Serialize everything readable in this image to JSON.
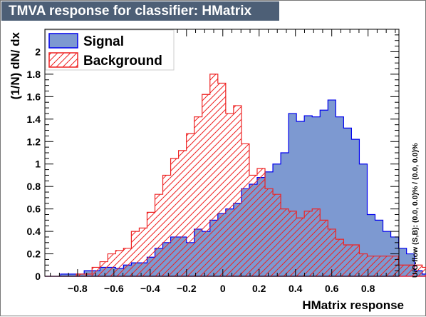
{
  "title": "TMVA response for classifier: HMatrix",
  "side_note": "U/O-flow (S,B): (0.0, 0.0)% / (0.0, 0.0)%",
  "colors": {
    "signal_fill": "#7d99d1",
    "signal_line": "#0000ee",
    "background_line": "#ee2222",
    "title_bg": "#4d5f76"
  },
  "chart_data": {
    "type": "histogram",
    "title": "TMVA response for classifier: HMatrix",
    "xlabel": "HMatrix response",
    "ylabel": "(1/N) dN/ dx",
    "xlim": [
      -0.98,
      0.97
    ],
    "ylim": [
      0,
      2.2
    ],
    "bin_start": -0.98,
    "bin_width": 0.0433,
    "xticks": [
      -0.8,
      -0.6,
      -0.4,
      -0.2,
      0,
      0.2,
      0.4,
      0.6,
      0.8
    ],
    "xtick_labels": [
      "−0.8",
      "−0.6",
      "−0.4",
      "−0.2",
      "0",
      "0.2",
      "0.4",
      "0.6",
      "0.8"
    ],
    "yticks": [
      0,
      0.2,
      0.4,
      0.6,
      0.8,
      1,
      1.2,
      1.4,
      1.6,
      1.8,
      2
    ],
    "ytick_labels": [
      "0",
      "0.2",
      "0.4",
      "0.6",
      "0.8",
      "1",
      "1.2",
      "1.4",
      "1.6",
      "1.8",
      "2"
    ],
    "legend": {
      "position": "top-left"
    },
    "series": [
      {
        "name": "Signal",
        "style": "filled",
        "values": [
          0.0,
          0.0,
          0.02,
          0.02,
          0.02,
          0.05,
          0.05,
          0.08,
          0.08,
          0.07,
          0.1,
          0.12,
          0.12,
          0.17,
          0.25,
          0.3,
          0.35,
          0.35,
          0.3,
          0.42,
          0.4,
          0.5,
          0.56,
          0.6,
          0.65,
          0.78,
          0.82,
          0.88,
          0.93,
          1.0,
          1.1,
          1.45,
          1.38,
          1.43,
          1.42,
          1.48,
          1.57,
          1.42,
          1.32,
          1.22,
          1.0,
          0.55,
          0.5,
          0.4,
          0.35,
          0.25,
          0.2,
          0.05,
          0.02,
          0.02,
          0.02,
          0.0,
          0.0,
          0.02,
          0.02
        ]
      },
      {
        "name": "Background",
        "style": "hatched",
        "values": [
          0.0,
          0.0,
          0.0,
          0.0,
          0.02,
          0.02,
          0.08,
          0.13,
          0.2,
          0.23,
          0.25,
          0.4,
          0.43,
          0.57,
          0.73,
          0.9,
          1.05,
          1.12,
          1.27,
          1.42,
          1.62,
          1.8,
          1.72,
          1.45,
          1.52,
          1.18,
          0.9,
          0.96,
          0.78,
          0.73,
          0.6,
          0.58,
          0.52,
          0.58,
          0.6,
          0.5,
          0.42,
          0.33,
          0.28,
          0.28,
          0.2,
          0.18,
          0.18,
          0.18,
          0.18,
          0.1,
          0.1,
          0.1,
          0.08,
          0.07,
          0.07,
          0.02,
          0.02,
          0.02,
          0.0
        ]
      }
    ]
  }
}
